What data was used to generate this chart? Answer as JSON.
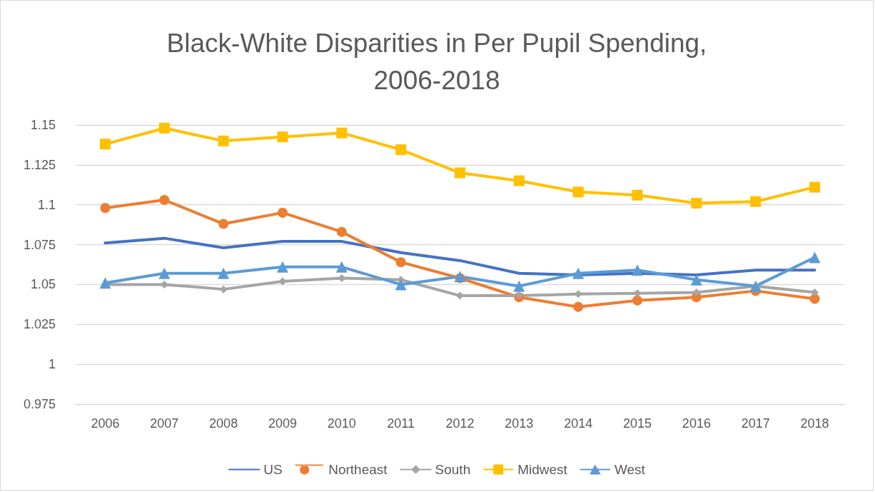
{
  "chart_data": {
    "type": "line",
    "title": "Black-White Disparities in Per Pupil Spending,\n2006-2018",
    "categories": [
      "2006",
      "2007",
      "2008",
      "2009",
      "2010",
      "2011",
      "2012",
      "2013",
      "2014",
      "2015",
      "2016",
      "2017",
      "2018"
    ],
    "series": [
      {
        "name": "US",
        "color": "#4472c4",
        "marker": "none",
        "values": [
          1.076,
          1.079,
          1.073,
          1.077,
          1.077,
          1.07,
          1.065,
          1.057,
          1.056,
          1.057,
          1.056,
          1.059,
          1.059
        ]
      },
      {
        "name": "Northeast",
        "color": "#ed7d31",
        "marker": "circle",
        "values": [
          1.098,
          1.103,
          1.088,
          1.095,
          1.083,
          1.064,
          1.054,
          1.042,
          1.036,
          1.04,
          1.042,
          1.046,
          1.041
        ]
      },
      {
        "name": "South",
        "color": "#a5a5a5",
        "marker": "diamond",
        "values": [
          1.05,
          1.05,
          1.047,
          1.052,
          1.054,
          1.053,
          1.043,
          1.043,
          1.044,
          1.0445,
          1.045,
          1.049,
          1.045
        ]
      },
      {
        "name": "Midwest",
        "color": "#ffc000",
        "marker": "square",
        "values": [
          1.138,
          1.148,
          1.14,
          1.1425,
          1.145,
          1.1345,
          1.12,
          1.115,
          1.108,
          1.106,
          1.101,
          1.102,
          1.111
        ]
      },
      {
        "name": "West",
        "color": "#5b9bd5",
        "marker": "triangle",
        "values": [
          1.051,
          1.057,
          1.057,
          1.061,
          1.061,
          1.05,
          1.055,
          1.049,
          1.057,
          1.059,
          1.053,
          1.049,
          1.067
        ]
      }
    ],
    "ylim": [
      0.975,
      1.15
    ],
    "yticks": [
      0.975,
      1,
      1.025,
      1.05,
      1.075,
      1.1,
      1.125,
      1.15
    ],
    "grid": "y",
    "legend": "bottom",
    "line_style": "solid"
  }
}
